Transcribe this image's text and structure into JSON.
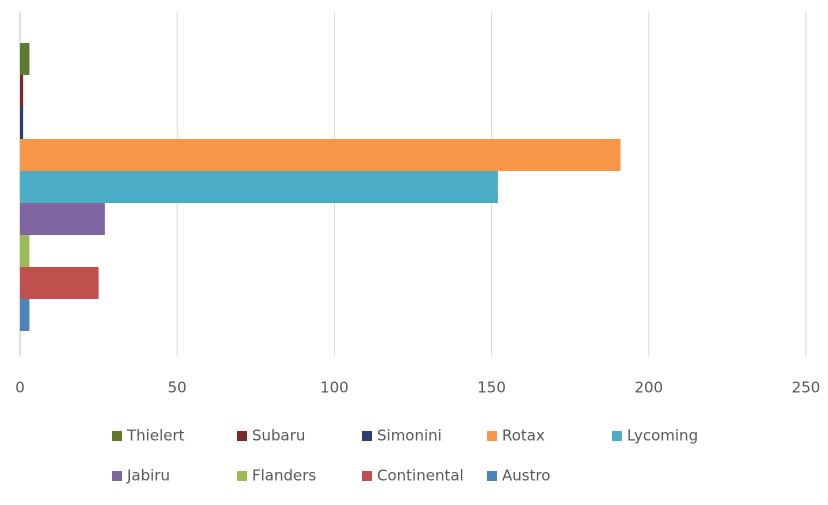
{
  "chart_data": {
    "type": "hbar",
    "series": [
      {
        "name": "Thielert",
        "color": "#5e7a2e",
        "values": [
          3
        ]
      },
      {
        "name": "Subaru",
        "color": "#7a2a22",
        "values": [
          1
        ]
      },
      {
        "name": "Simonini",
        "color": "#2c3e6e",
        "values": [
          1
        ]
      },
      {
        "name": "Rotax",
        "color": "#f79646",
        "values": [
          191
        ]
      },
      {
        "name": "Lycoming",
        "color": "#4bacc6",
        "values": [
          152
        ]
      },
      {
        "name": "Jabiru",
        "color": "#8064a2",
        "values": [
          27
        ]
      },
      {
        "name": "Flanders",
        "color": "#9bbb59",
        "values": [
          3
        ]
      },
      {
        "name": "Continental",
        "color": "#c0504d",
        "values": [
          25
        ]
      },
      {
        "name": "Austro",
        "color": "#4f81bd",
        "values": [
          3
        ]
      }
    ],
    "xlim": [
      0,
      250
    ],
    "xticks": [
      0,
      50,
      100,
      150,
      200,
      250
    ],
    "grid": true,
    "legend": "bottom"
  }
}
